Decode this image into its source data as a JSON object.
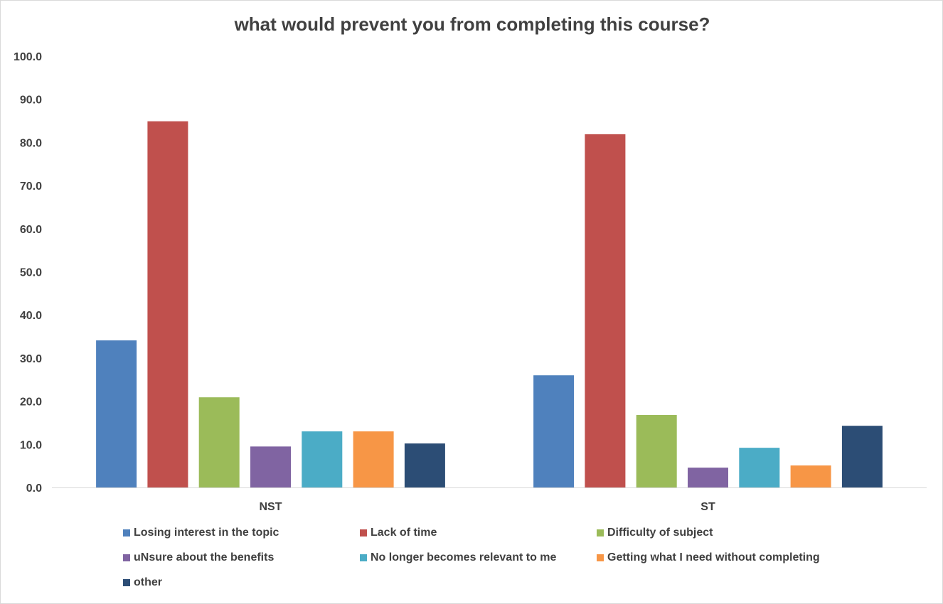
{
  "chart_data": {
    "type": "bar",
    "title": "what would prevent you from completing this course?",
    "xlabel": "",
    "ylabel": "",
    "ylim": [
      0,
      100
    ],
    "yticks": [
      "0.0",
      "10.0",
      "20.0",
      "30.0",
      "40.0",
      "50.0",
      "60.0",
      "70.0",
      "80.0",
      "90.0",
      "100.0"
    ],
    "categories": [
      "NST",
      "ST"
    ],
    "grid": false,
    "legend_position": "bottom",
    "series": [
      {
        "name": "Losing interest in the topic",
        "color": "#4f81bd",
        "values": [
          34.1,
          26.0
        ]
      },
      {
        "name": "Lack of time",
        "color": "#c0504d",
        "values": [
          84.9,
          81.9
        ]
      },
      {
        "name": "Difficulty of subject",
        "color": "#9bbb59",
        "values": [
          20.9,
          16.8
        ]
      },
      {
        "name": "uNsure about the benefits",
        "color": "#8064a2",
        "values": [
          9.5,
          4.6
        ]
      },
      {
        "name": "No longer becomes relevant to me",
        "color": "#4bacc6",
        "values": [
          13.0,
          9.2
        ]
      },
      {
        "name": "Getting what I need without completing",
        "color": "#f79646",
        "values": [
          13.0,
          5.1
        ]
      },
      {
        "name": "other",
        "color": "#2c4d75",
        "values": [
          10.2,
          14.3
        ]
      }
    ]
  }
}
